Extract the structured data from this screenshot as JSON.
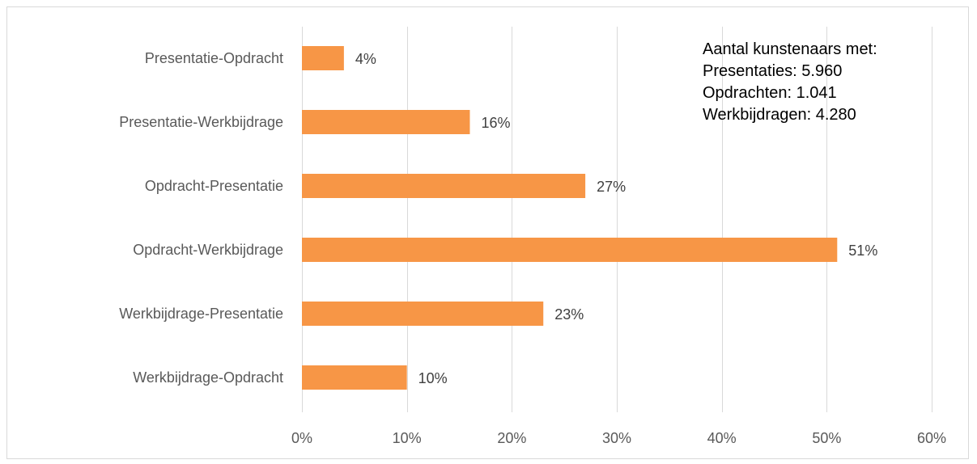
{
  "chart_data": {
    "type": "bar",
    "orientation": "horizontal",
    "categories": [
      "Presentatie-Opdracht",
      "Presentatie-Werkbijdrage",
      "Opdracht-Presentatie",
      "Opdracht-Werkbijdrage",
      "Werkbijdrage-Presentatie",
      "Werkbijdrage-Opdracht"
    ],
    "values": [
      4,
      16,
      27,
      51,
      23,
      10
    ],
    "data_labels": [
      "4%",
      "16%",
      "27%",
      "51%",
      "23%",
      "10%"
    ],
    "xlim": [
      0,
      60
    ],
    "x_ticks": [
      0,
      10,
      20,
      30,
      40,
      50,
      60
    ],
    "x_tick_labels": [
      "0%",
      "10%",
      "20%",
      "30%",
      "40%",
      "50%",
      "60%"
    ],
    "grid": "vertical",
    "bar_color": "#f79646",
    "title": "",
    "xlabel": "",
    "ylabel": "",
    "annotation": {
      "line1": "Aantal kunstenaars met:",
      "line2": "Presentaties: 5.960",
      "line3": "Opdrachten: 1.041",
      "line4": "Werkbijdragen: 4.280"
    }
  }
}
